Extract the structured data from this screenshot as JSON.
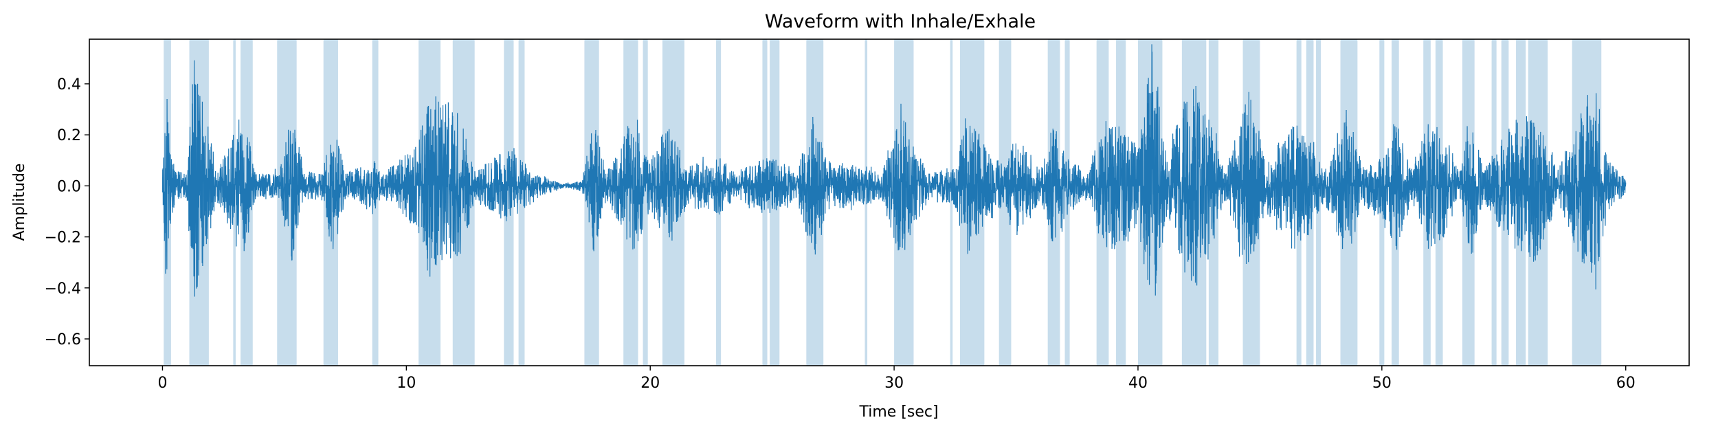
{
  "chart_data": {
    "type": "line",
    "title": "Waveform with Inhale/Exhale",
    "xlabel": "Time [sec]",
    "ylabel": "Amplitude",
    "xlim": [
      -3.0,
      62.6
    ],
    "ylim": [
      -0.705,
      0.575
    ],
    "x_ticks": [
      0,
      10,
      20,
      30,
      40,
      50,
      60
    ],
    "x_tick_labels": [
      "0",
      "10",
      "20",
      "30",
      "40",
      "50",
      "60"
    ],
    "y_ticks": [
      -0.6,
      -0.4,
      -0.2,
      0.0,
      0.2,
      0.4
    ],
    "y_tick_labels": [
      "−0.6",
      "−0.4",
      "−0.2",
      "0.0",
      "0.2",
      "0.4"
    ],
    "grid": false,
    "line_color": "#1f77b4",
    "span_color": "#1f77b4",
    "span_alpha": 0.25,
    "series": [
      {
        "x_range": [
          0,
          60
        ],
        "envelope": [
          [
            0,
            0.05
          ],
          [
            0.15,
            0.38
          ],
          [
            0.5,
            0.06
          ],
          [
            1.0,
            0.05
          ],
          [
            1.3,
            0.5
          ],
          [
            1.8,
            0.3
          ],
          [
            2.2,
            0.05
          ],
          [
            3.3,
            0.3
          ],
          [
            3.8,
            0.05
          ],
          [
            4.8,
            0.06
          ],
          [
            5.3,
            0.3
          ],
          [
            5.8,
            0.05
          ],
          [
            6.6,
            0.06
          ],
          [
            7.0,
            0.3
          ],
          [
            7.5,
            0.05
          ],
          [
            8.7,
            0.1
          ],
          [
            9.0,
            0.04
          ],
          [
            10.5,
            0.18
          ],
          [
            11.0,
            0.4
          ],
          [
            11.5,
            0.3
          ],
          [
            12.2,
            0.28
          ],
          [
            12.8,
            0.06
          ],
          [
            14.2,
            0.15
          ],
          [
            14.8,
            0.1
          ],
          [
            15.5,
            0.04
          ],
          [
            16.5,
            0.01
          ],
          [
            17.2,
            0.02
          ],
          [
            17.7,
            0.27
          ],
          [
            18.2,
            0.05
          ],
          [
            19.3,
            0.27
          ],
          [
            20.0,
            0.1
          ],
          [
            20.7,
            0.25
          ],
          [
            21.5,
            0.08
          ],
          [
            22.8,
            0.12
          ],
          [
            23.5,
            0.05
          ],
          [
            24.8,
            0.12
          ],
          [
            25.3,
            0.1
          ],
          [
            26.0,
            0.05
          ],
          [
            26.7,
            0.3
          ],
          [
            27.2,
            0.1
          ],
          [
            28.8,
            0.08
          ],
          [
            29.5,
            0.05
          ],
          [
            30.3,
            0.3
          ],
          [
            30.8,
            0.15
          ],
          [
            31.5,
            0.05
          ],
          [
            32.4,
            0.08
          ],
          [
            33.0,
            0.27
          ],
          [
            33.8,
            0.15
          ],
          [
            34.5,
            0.08
          ],
          [
            35.0,
            0.2
          ],
          [
            36.0,
            0.06
          ],
          [
            36.5,
            0.25
          ],
          [
            37.2,
            0.1
          ],
          [
            38.0,
            0.06
          ],
          [
            38.6,
            0.27
          ],
          [
            39.3,
            0.25
          ],
          [
            40.0,
            0.15
          ],
          [
            40.6,
            0.55
          ],
          [
            41.2,
            0.1
          ],
          [
            41.9,
            0.35
          ],
          [
            42.4,
            0.4
          ],
          [
            43.0,
            0.25
          ],
          [
            43.6,
            0.06
          ],
          [
            44.6,
            0.4
          ],
          [
            45.2,
            0.1
          ],
          [
            46.4,
            0.25
          ],
          [
            47.0,
            0.2
          ],
          [
            47.6,
            0.06
          ],
          [
            48.6,
            0.3
          ],
          [
            49.2,
            0.08
          ],
          [
            50.0,
            0.12
          ],
          [
            50.6,
            0.25
          ],
          [
            51.2,
            0.06
          ],
          [
            51.9,
            0.25
          ],
          [
            52.6,
            0.2
          ],
          [
            53.2,
            0.06
          ],
          [
            53.6,
            0.3
          ],
          [
            54.2,
            0.06
          ],
          [
            54.7,
            0.15
          ],
          [
            55.3,
            0.25
          ],
          [
            55.9,
            0.3
          ],
          [
            56.5,
            0.3
          ],
          [
            57.2,
            0.06
          ],
          [
            58.2,
            0.3
          ],
          [
            58.8,
            0.38
          ],
          [
            59.3,
            0.1
          ],
          [
            60.0,
            0.03
          ]
        ]
      }
    ],
    "spans": [
      [
        0.05,
        0.35
      ],
      [
        1.1,
        1.9
      ],
      [
        2.9,
        3.0
      ],
      [
        3.2,
        3.7
      ],
      [
        4.7,
        5.5
      ],
      [
        6.6,
        7.2
      ],
      [
        8.6,
        8.85
      ],
      [
        10.5,
        11.4
      ],
      [
        11.9,
        12.8
      ],
      [
        14.0,
        14.4
      ],
      [
        14.6,
        14.85
      ],
      [
        17.3,
        17.9
      ],
      [
        18.9,
        19.5
      ],
      [
        19.7,
        19.9
      ],
      [
        20.5,
        21.4
      ],
      [
        22.7,
        22.9
      ],
      [
        24.6,
        24.8
      ],
      [
        24.9,
        25.3
      ],
      [
        26.4,
        27.1
      ],
      [
        28.8,
        28.9
      ],
      [
        30.0,
        30.8
      ],
      [
        32.3,
        32.4
      ],
      [
        32.7,
        33.7
      ],
      [
        34.3,
        34.8
      ],
      [
        36.3,
        36.8
      ],
      [
        37.0,
        37.2
      ],
      [
        38.3,
        38.8
      ],
      [
        39.1,
        39.5
      ],
      [
        40.0,
        41.0
      ],
      [
        41.8,
        42.8
      ],
      [
        42.9,
        43.3
      ],
      [
        44.3,
        45.0
      ],
      [
        46.5,
        46.7
      ],
      [
        46.9,
        47.2
      ],
      [
        47.3,
        47.5
      ],
      [
        48.3,
        49.0
      ],
      [
        49.9,
        50.1
      ],
      [
        50.4,
        50.7
      ],
      [
        51.7,
        52.0
      ],
      [
        52.2,
        52.5
      ],
      [
        53.3,
        53.8
      ],
      [
        54.5,
        54.7
      ],
      [
        54.9,
        55.2
      ],
      [
        55.5,
        55.9
      ],
      [
        56.0,
        56.8
      ],
      [
        57.8,
        59.0
      ]
    ]
  }
}
